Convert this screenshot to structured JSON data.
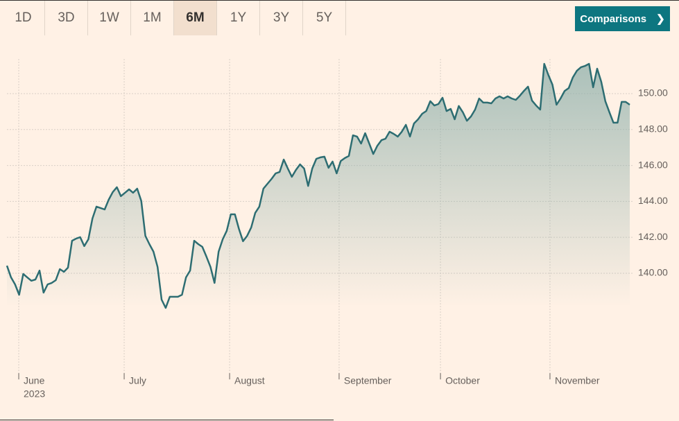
{
  "tabs": [
    "1D",
    "3D",
    "1W",
    "1M",
    "6M",
    "1Y",
    "3Y",
    "5Y"
  ],
  "selected_tab": 4,
  "button": "Comparisons",
  "chart_data": {
    "type": "area",
    "color": "#2d6d72",
    "grid": true,
    "xlim": [
      0,
      153
    ],
    "xticks": [
      {
        "value": 2.9,
        "label": "June"
      },
      {
        "value": 28.8,
        "label": "July"
      },
      {
        "value": 54.7,
        "label": "August"
      },
      {
        "value": 81.6,
        "label": "September"
      },
      {
        "value": 106.5,
        "label": "October"
      },
      {
        "value": 133.4,
        "label": "November"
      }
    ],
    "year_label": "2023",
    "ylim": [
      134.36,
      151.93
    ],
    "yticks": [
      {
        "value": 140,
        "label": "140.00"
      },
      {
        "value": 142,
        "label": "142.00"
      },
      {
        "value": 144,
        "label": "144.00"
      },
      {
        "value": 146,
        "label": "146.00"
      },
      {
        "value": 148,
        "label": "148.00"
      },
      {
        "value": 150,
        "label": "150.00"
      }
    ],
    "values": [
      140.42,
      139.77,
      139.38,
      138.8,
      139.96,
      139.77,
      139.58,
      139.65,
      140.15,
      138.92,
      139.38,
      139.46,
      139.61,
      140.23,
      140.08,
      140.31,
      141.81,
      141.93,
      142.01,
      141.51,
      141.89,
      143.05,
      143.71,
      143.63,
      143.55,
      144.09,
      144.52,
      144.79,
      144.29,
      144.48,
      144.67,
      144.48,
      144.71,
      144.02,
      142.08,
      141.62,
      141.2,
      140.35,
      138.53,
      138.07,
      138.69,
      138.69,
      138.69,
      138.8,
      139.77,
      140.15,
      141.81,
      141.62,
      141.47,
      140.93,
      140.35,
      139.46,
      141.2,
      141.89,
      142.36,
      143.28,
      143.28,
      142.47,
      141.78,
      142.08,
      142.55,
      143.36,
      143.71,
      144.71,
      144.98,
      145.25,
      145.56,
      145.64,
      146.33,
      145.83,
      145.37,
      145.75,
      146.06,
      145.83,
      144.86,
      145.83,
      146.37,
      146.45,
      146.49,
      145.87,
      146.22,
      145.56,
      146.25,
      146.41,
      146.53,
      147.68,
      147.61,
      147.22,
      147.8,
      147.22,
      146.64,
      147.1,
      147.41,
      147.49,
      147.88,
      147.76,
      147.61,
      147.88,
      148.26,
      147.61,
      148.34,
      148.57,
      148.88,
      149.03,
      149.58,
      149.34,
      149.42,
      149.77,
      149.03,
      149.15,
      148.57,
      149.31,
      148.96,
      148.49,
      148.73,
      149.11,
      149.73,
      149.5,
      149.5,
      149.46,
      149.73,
      149.85,
      149.73,
      149.85,
      149.73,
      149.65,
      149.88,
      150.15,
      150.39,
      149.61,
      149.34,
      149.11,
      151.66,
      151.04,
      150.5,
      149.38,
      149.73,
      150.15,
      150.31,
      150.89,
      151.27,
      151.47,
      151.54,
      151.66,
      150.35,
      151.39,
      150.66,
      149.58,
      148.96,
      148.38,
      148.38,
      149.54,
      149.54,
      149.38
    ]
  }
}
